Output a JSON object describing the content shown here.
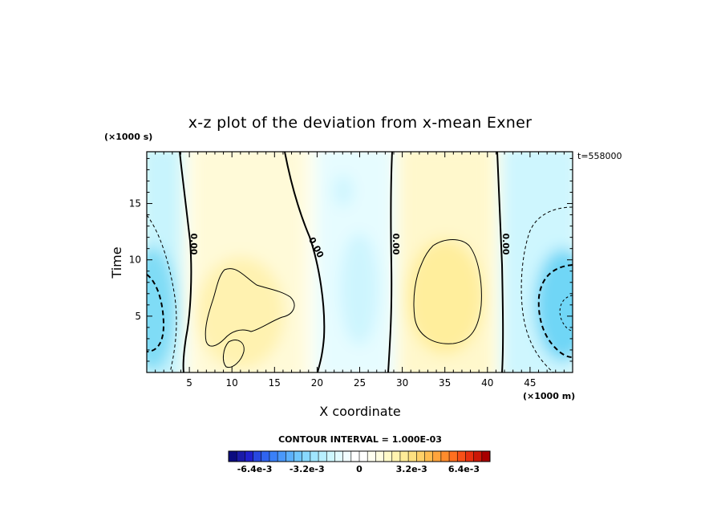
{
  "chart_data": {
    "type": "heatmap",
    "title": "x-z plot of the deviation from x-mean Exner",
    "xlabel": "X coordinate",
    "ylabel": "Time",
    "x_unit": "(×1000 m)",
    "y_unit": "(×1000 s)",
    "time_stamp": "t=558000",
    "xlim": [
      0,
      50
    ],
    "ylim": [
      0,
      19.6
    ],
    "x_ticks": [
      5,
      10,
      15,
      20,
      25,
      30,
      35,
      40,
      45
    ],
    "y_ticks": [
      5,
      10,
      15
    ],
    "contour_interval_text": "CONTOUR INTERVAL = 1.000E-03",
    "zero_contour_label": "0.00",
    "zero_contour_x": [
      5.0,
      19.3,
      28.8,
      41.6
    ],
    "colorbar": {
      "min": -0.008,
      "max": 0.008,
      "tick_values": [
        -0.0064,
        -0.0032,
        0,
        0.0032,
        0.0064
      ],
      "tick_labels": [
        "-6.4e-3",
        "-3.2e-3",
        "0",
        "3.2e-3",
        "6.4e-3"
      ],
      "colors": [
        "#0b0b80",
        "#1a1aa8",
        "#2020cc",
        "#2848e0",
        "#3064f0",
        "#3a80f8",
        "#4a98fa",
        "#5cb0fc",
        "#70c6fd",
        "#88d8fe",
        "#a0e6fe",
        "#b8f0fe",
        "#ceF7fe",
        "#e2fbff",
        "#f2fdff",
        "#ffffff",
        "#ffffff",
        "#fffff0",
        "#fffde0",
        "#fffac8",
        "#fff4b0",
        "#ffec98",
        "#ffe080",
        "#ffd068",
        "#ffbc50",
        "#ffa43c",
        "#ff8c2c",
        "#ff7020",
        "#f85018",
        "#e83010",
        "#cc1808",
        "#a80000"
      ]
    },
    "regions": [
      {
        "name": "negative-left",
        "x_range": [
          0,
          5
        ],
        "t_range": [
          0,
          19.6
        ],
        "min_value": -0.0035
      },
      {
        "name": "positive-left-centre",
        "x_range": [
          5,
          19
        ],
        "t_range": [
          0,
          19.6
        ],
        "max_value": 0.0015
      },
      {
        "name": "negative-centre",
        "x_range": [
          19.5,
          28.5
        ],
        "t_range": [
          0,
          19.6
        ],
        "min_value": -0.001
      },
      {
        "name": "positive-right-centre",
        "x_range": [
          29,
          41.5
        ],
        "t_range": [
          0,
          19.6
        ],
        "max_value": 0.0025
      },
      {
        "name": "negative-right",
        "x_range": [
          42,
          50
        ],
        "t_range": [
          0,
          19.6
        ],
        "min_value": -0.0035
      }
    ]
  }
}
